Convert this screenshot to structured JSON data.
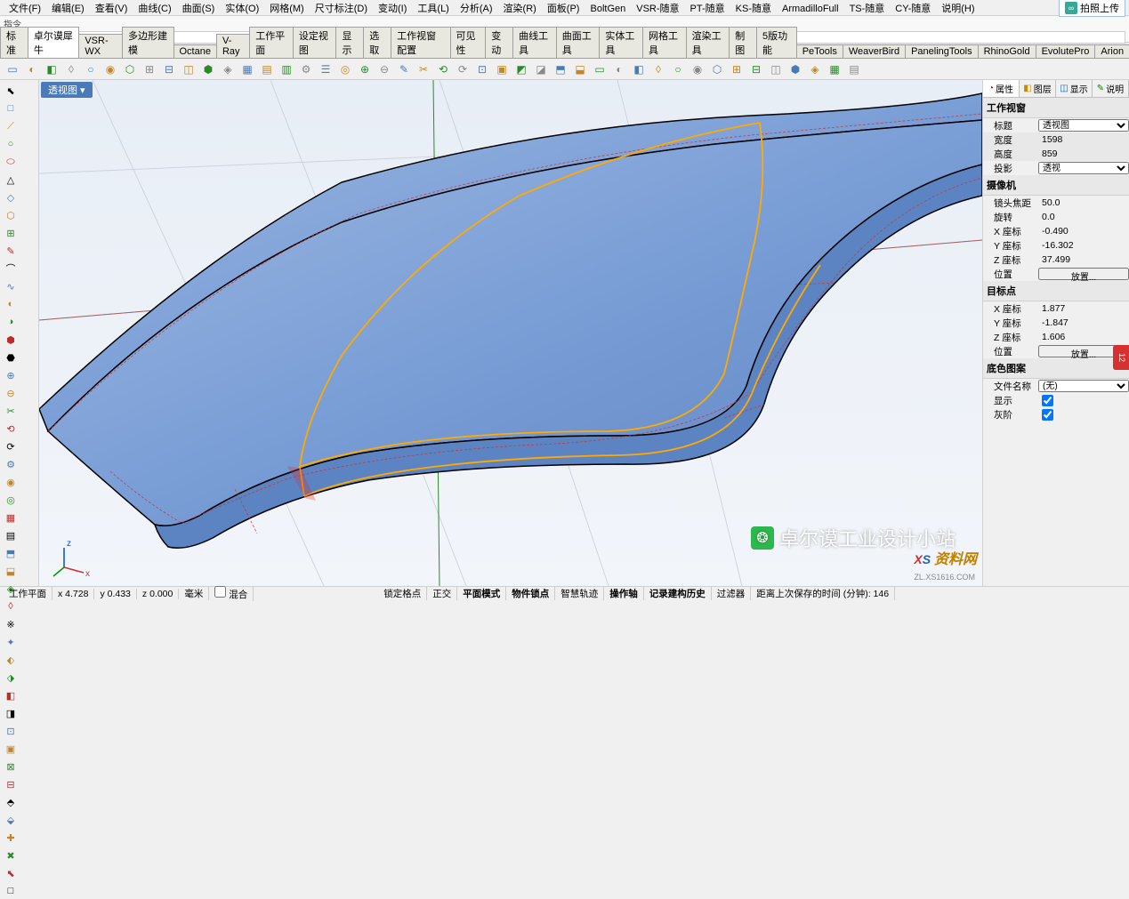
{
  "menu": [
    "文件(F)",
    "编辑(E)",
    "查看(V)",
    "曲线(C)",
    "曲面(S)",
    "实体(O)",
    "网格(M)",
    "尺寸标注(D)",
    "变动(I)",
    "工具(L)",
    "分析(A)",
    "渲染(R)",
    "面板(P)",
    "BoltGen",
    "VSR-随意",
    "PT-随意",
    "KS-随意",
    "ArmadilloFull",
    "TS-随意",
    "CY-随意",
    "说明(H)"
  ],
  "upload_label": "拍照上传",
  "cmd_label1": "指令",
  "cmd_label2": "指令:",
  "cmd_value": "",
  "tabs": [
    "标准",
    "卓尔谟犀牛",
    "VSR-WX",
    "多边形建模",
    "Octane",
    "V-Ray",
    "工作平面",
    "设定视图",
    "显示",
    "选取",
    "工作视窗配置",
    "可见性",
    "变动",
    "曲线工具",
    "曲面工具",
    "实体工具",
    "网格工具",
    "渲染工具",
    "制图",
    "5版功能",
    "PeTools",
    "WeaverBird",
    "PanelingTools",
    "RhinoGold",
    "EvolutePro",
    "Arion"
  ],
  "active_tab_index": 1,
  "viewport_tab": "透视图 ▾",
  "right_tabs": [
    {
      "icon": "◔",
      "label": "属性",
      "color": "#c00"
    },
    {
      "icon": "◧",
      "label": "图层",
      "color": "#c80"
    },
    {
      "icon": "◫",
      "label": "显示",
      "color": "#06c"
    },
    {
      "icon": "✎",
      "label": "说明",
      "color": "#080"
    }
  ],
  "panel": {
    "section1_title": "工作视窗",
    "rows1": [
      {
        "label": "标题",
        "value": "透视图",
        "type": "select"
      },
      {
        "label": "宽度",
        "value": "1598",
        "shade": true
      },
      {
        "label": "高度",
        "value": "859",
        "shade": true
      },
      {
        "label": "投影",
        "value": "透视",
        "type": "select"
      }
    ],
    "section2_title": "摄像机",
    "rows2": [
      {
        "label": "镜头焦距",
        "value": "50.0"
      },
      {
        "label": "旋转",
        "value": "0.0"
      },
      {
        "label": "X 座标",
        "value": "-0.490"
      },
      {
        "label": "Y 座标",
        "value": "-16.302"
      },
      {
        "label": "Z 座标",
        "value": "37.499"
      },
      {
        "label": "位置",
        "value": "放置...",
        "type": "button"
      }
    ],
    "section3_title": "目标点",
    "rows3": [
      {
        "label": "X 座标",
        "value": "1.877"
      },
      {
        "label": "Y 座标",
        "value": "-1.847"
      },
      {
        "label": "Z 座标",
        "value": "1.606"
      },
      {
        "label": "位置",
        "value": "放置...",
        "type": "button"
      }
    ],
    "section4_title": "底色图案",
    "rows4": [
      {
        "label": "文件名称",
        "value": "(无)",
        "type": "select"
      },
      {
        "label": "显示",
        "type": "checkbox",
        "checked": true
      },
      {
        "label": "灰阶",
        "type": "checkbox",
        "checked": true
      }
    ]
  },
  "status": {
    "items": [
      "工作平面",
      "x 4.728",
      "y 0.433",
      "z 0.000",
      "毫米"
    ],
    "checkbox_label": "混合",
    "modes": [
      "锁定格点",
      "正交",
      "平面模式",
      "物件锁点",
      "智慧轨迹",
      "操作轴",
      "记录建构历史",
      "过滤器"
    ],
    "bold_modes": [
      2,
      3,
      5,
      6
    ],
    "save_info": "距离上次保存的时间 (分钟): 146"
  },
  "watermark_text": "卓尔谟工业设计小站",
  "logo": {
    "prefix": "XS",
    "text": "资料网",
    "sub": "ZL.XS1616.COM"
  },
  "surface": {
    "fill": "#7a9ed6",
    "fill_dark": "#5d84c2",
    "highlight": "#ffaa00",
    "isocurve": "#cc3030",
    "edge": "#000000",
    "grid": "#b8c2d0",
    "grid_axis": "#a06060",
    "grid_green": "#2a8a2a"
  },
  "axis_label": "z",
  "axis_label2": "x",
  "side_badge": "12"
}
